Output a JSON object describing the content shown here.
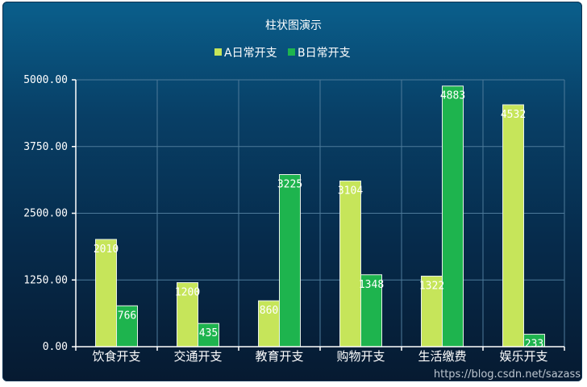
{
  "chart_data": {
    "type": "bar",
    "title": "柱状图演示",
    "categories": [
      "饮食开支",
      "交通开支",
      "教育开支",
      "购物开支",
      "生活缴费",
      "娱乐开支"
    ],
    "series": [
      {
        "name": "A日常开支",
        "values": [
          2010,
          1200,
          860,
          3104,
          1322,
          4532
        ],
        "color": "#c6e55a"
      },
      {
        "name": "B日常开支",
        "values": [
          766,
          435,
          3225,
          1348,
          4883,
          233
        ],
        "color": "#1eb44e"
      }
    ],
    "ylim": [
      0,
      5000
    ],
    "yticks": [
      "0.00",
      "1250.00",
      "2500.00",
      "3750.00",
      "5000.00"
    ],
    "ytick_values": [
      0,
      1250,
      2500,
      3750,
      5000
    ],
    "grid": true,
    "legend_position": "top-center",
    "background": "#083f66"
  },
  "watermark": "https://blog.csdn.net/sazass"
}
